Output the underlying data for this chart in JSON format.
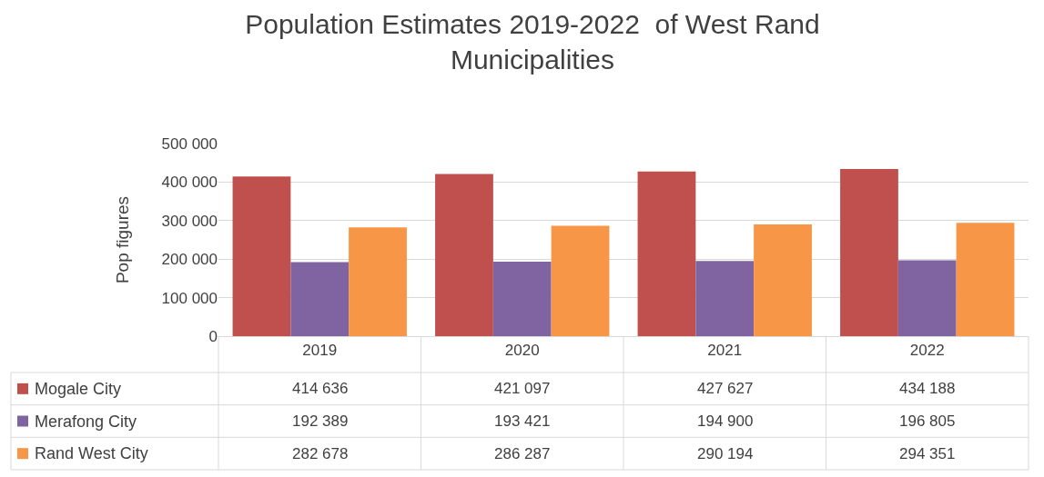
{
  "chart_data": {
    "type": "bar",
    "title": "Population Estimates 2019-2022  of West Rand\nMunicipalities",
    "ylabel": "Pop figures",
    "categories": [
      "2019",
      "2020",
      "2021",
      "2022"
    ],
    "series": [
      {
        "name": "Mogale City",
        "color": "#c0504d",
        "values": [
          414636,
          421097,
          427627,
          434188
        ],
        "value_labels": [
          "414 636",
          "421 097",
          "427 627",
          "434 188"
        ]
      },
      {
        "name": "Merafong City",
        "color": "#8064a2",
        "values": [
          192389,
          193421,
          194900,
          196805
        ],
        "value_labels": [
          "192 389",
          "193 421",
          "194 900",
          "196 805"
        ]
      },
      {
        "name": "Rand West City",
        "color": "#f79646",
        "values": [
          282678,
          286287,
          290194,
          294351
        ],
        "value_labels": [
          "282 678",
          "286 287",
          "290 194",
          "294 351"
        ]
      }
    ],
    "ylim": [
      0,
      500000
    ],
    "yticks": [
      {
        "value": 0,
        "label": "0"
      },
      {
        "value": 100000,
        "label": "100 000"
      },
      {
        "value": 200000,
        "label": "200 000"
      },
      {
        "value": 300000,
        "label": "300 000"
      },
      {
        "value": 400000,
        "label": "400 000"
      },
      {
        "value": 500000,
        "label": "500 000"
      }
    ],
    "grid": "y",
    "legend": "bottom"
  }
}
